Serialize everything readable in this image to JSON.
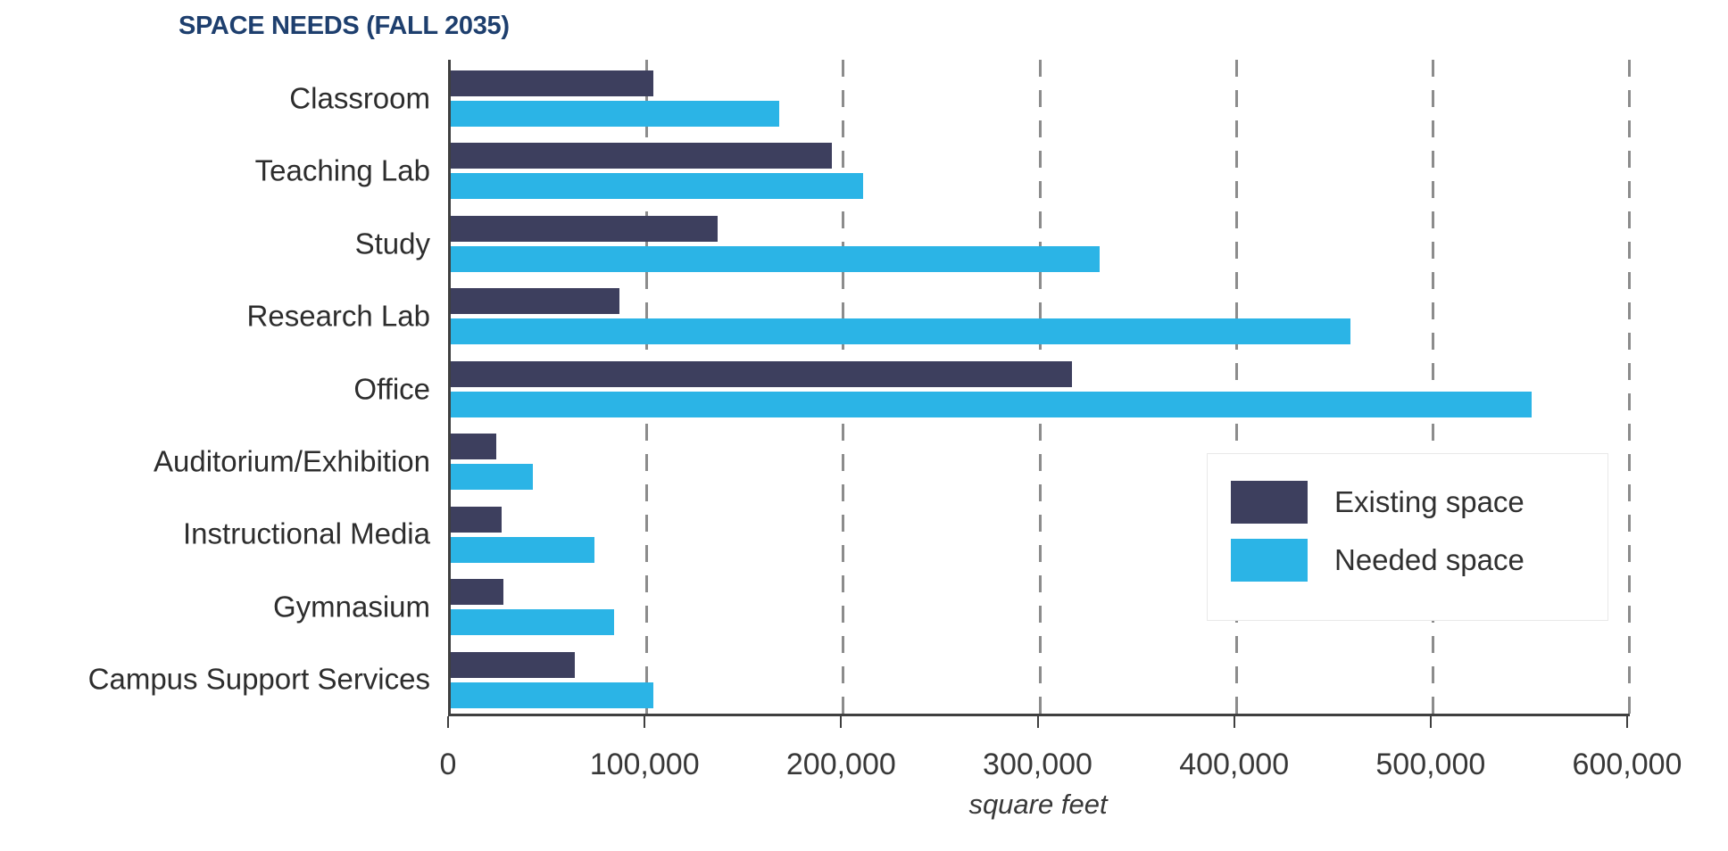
{
  "title": "SPACE NEEDS (FALL 2035)",
  "colors": {
    "existing": "#3d3f5e",
    "needed": "#2bb4e6",
    "title_text": "#1e3f6e",
    "axis": "#3f3f3f",
    "gridline": "#8c8c8c",
    "label_text": "#2d2d2d"
  },
  "chart_data": {
    "type": "bar",
    "orientation": "horizontal",
    "title": "SPACE NEEDS (FALL 2035)",
    "categories": [
      "Classroom",
      "Teaching Lab",
      "Study",
      "Research Lab",
      "Office",
      "Auditorium/Exhibition",
      "Instructional Media",
      "Gymnasium",
      "Campus Support Services"
    ],
    "series": [
      {
        "name": "Existing space",
        "color": "#3d3f5e",
        "values": [
          103000,
          194000,
          136000,
          86000,
          316000,
          23000,
          26000,
          27000,
          63000
        ]
      },
      {
        "name": "Needed space",
        "color": "#2bb4e6",
        "values": [
          167000,
          210000,
          330000,
          458000,
          550000,
          42000,
          73000,
          83000,
          103000
        ]
      }
    ],
    "xlabel": "square feet",
    "xlim": [
      0,
      600000
    ],
    "xticks": [
      {
        "value": 0,
        "label": "0"
      },
      {
        "value": 100000,
        "label": "100,000"
      },
      {
        "value": 200000,
        "label": "200,000"
      },
      {
        "value": 300000,
        "label": "300,000"
      },
      {
        "value": 400000,
        "label": "400,000"
      },
      {
        "value": 500000,
        "label": "500,000"
      },
      {
        "value": 600000,
        "label": "600,000"
      }
    ],
    "grid": "vertical-dashed",
    "legend_position": "inside-right"
  }
}
